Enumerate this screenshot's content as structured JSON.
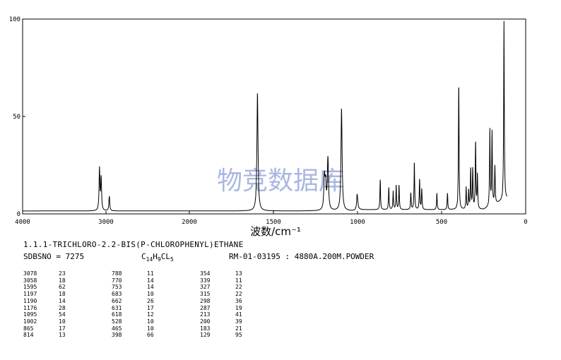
{
  "chart_data": {
    "type": "line",
    "title": "",
    "xlabel": "波数/cm⁻¹",
    "ylabel": "",
    "xlim": [
      4000,
      0
    ],
    "ylim": [
      0,
      100
    ],
    "x_ticks": [
      "4000",
      "3000",
      "2000",
      "1500",
      "1000",
      "500",
      "0"
    ],
    "y_ticks": [
      "100",
      "50",
      "0"
    ],
    "grid": false,
    "watermark": "物竞数据库",
    "peaks": [
      {
        "x": 3078,
        "y": 23
      },
      {
        "x": 3058,
        "y": 18
      },
      {
        "x": 2960,
        "y": 9
      },
      {
        "x": 1595,
        "y": 62
      },
      {
        "x": 1197,
        "y": 18
      },
      {
        "x": 1190,
        "y": 14
      },
      {
        "x": 1176,
        "y": 28
      },
      {
        "x": 1095,
        "y": 54
      },
      {
        "x": 1002,
        "y": 10
      },
      {
        "x": 865,
        "y": 17
      },
      {
        "x": 814,
        "y": 13
      },
      {
        "x": 788,
        "y": 11
      },
      {
        "x": 770,
        "y": 14
      },
      {
        "x": 753,
        "y": 14
      },
      {
        "x": 683,
        "y": 10
      },
      {
        "x": 662,
        "y": 26
      },
      {
        "x": 631,
        "y": 17
      },
      {
        "x": 618,
        "y": 12
      },
      {
        "x": 528,
        "y": 10
      },
      {
        "x": 465,
        "y": 10
      },
      {
        "x": 398,
        "y": 66
      },
      {
        "x": 354,
        "y": 13
      },
      {
        "x": 339,
        "y": 11
      },
      {
        "x": 327,
        "y": 22
      },
      {
        "x": 315,
        "y": 22
      },
      {
        "x": 298,
        "y": 36
      },
      {
        "x": 287,
        "y": 19
      },
      {
        "x": 213,
        "y": 41
      },
      {
        "x": 200,
        "y": 39
      },
      {
        "x": 183,
        "y": 21
      },
      {
        "x": 129,
        "y": 95
      }
    ],
    "series_color": "#000000"
  },
  "compound": {
    "name": "1.1.1-TRICHLORO-2.2-BIS(P-CHLOROPHENYL)ETHANE",
    "sdbs_label": "SDBSNO = 7275",
    "formula_parts": {
      "c": "C",
      "cn": "14",
      "h": "H",
      "hn": "9",
      "cl": "CL",
      "cln": "5"
    },
    "instrument": "RM-01-03195 : 4880A.200M.POWDER"
  },
  "peak_table": {
    "columns": [
      [
        [
          "3078",
          "23"
        ],
        [
          "3058",
          "18"
        ],
        [
          "1595",
          "62"
        ],
        [
          "1197",
          "18"
        ],
        [
          "1190",
          "14"
        ],
        [
          "1176",
          "28"
        ],
        [
          "1095",
          "54"
        ],
        [
          "1002",
          "10"
        ],
        [
          "865",
          "17"
        ],
        [
          "814",
          "13"
        ]
      ],
      [
        [
          "788",
          "11"
        ],
        [
          "770",
          "14"
        ],
        [
          "753",
          "14"
        ],
        [
          "683",
          "10"
        ],
        [
          "662",
          "26"
        ],
        [
          "631",
          "17"
        ],
        [
          "618",
          "12"
        ],
        [
          "528",
          "10"
        ],
        [
          "465",
          "10"
        ],
        [
          "398",
          "66"
        ]
      ],
      [
        [
          "354",
          "13"
        ],
        [
          "339",
          "11"
        ],
        [
          "327",
          "22"
        ],
        [
          "315",
          "22"
        ],
        [
          "298",
          "36"
        ],
        [
          "287",
          "19"
        ],
        [
          "213",
          "41"
        ],
        [
          "200",
          "39"
        ],
        [
          "183",
          "21"
        ],
        [
          "129",
          "95"
        ]
      ]
    ]
  }
}
